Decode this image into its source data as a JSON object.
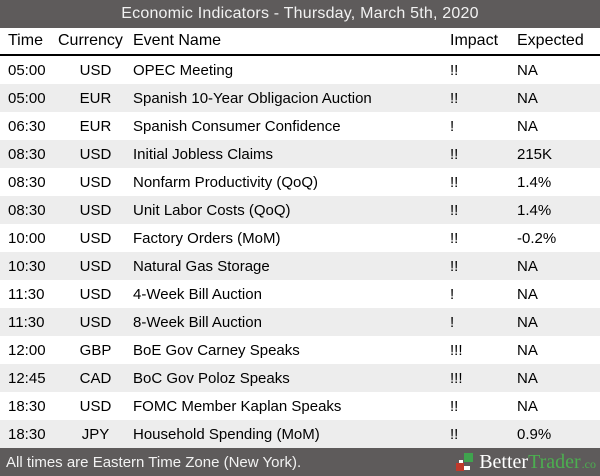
{
  "title": "Economic Indicators - Thursday, March 5th, 2020",
  "table": {
    "columns": [
      "Time",
      "Currency",
      "Event Name",
      "Impact",
      "Expected"
    ],
    "rows": [
      {
        "time": "05:00",
        "currency": "USD",
        "event": "OPEC Meeting",
        "impact": "!!",
        "expected": "NA"
      },
      {
        "time": "05:00",
        "currency": "EUR",
        "event": "Spanish 10-Year Obligacion Auction",
        "impact": "!!",
        "expected": "NA"
      },
      {
        "time": "06:30",
        "currency": "EUR",
        "event": "Spanish Consumer Confidence",
        "impact": "!",
        "expected": "NA"
      },
      {
        "time": "08:30",
        "currency": "USD",
        "event": "Initial Jobless Claims",
        "impact": "!!",
        "expected": "215K"
      },
      {
        "time": "08:30",
        "currency": "USD",
        "event": "Nonfarm Productivity (QoQ)",
        "impact": "!!",
        "expected": "1.4%"
      },
      {
        "time": "08:30",
        "currency": "USD",
        "event": "Unit Labor Costs (QoQ)",
        "impact": "!!",
        "expected": "1.4%"
      },
      {
        "time": "10:00",
        "currency": "USD",
        "event": "Factory Orders (MoM)",
        "impact": "!!",
        "expected": "-0.2%"
      },
      {
        "time": "10:30",
        "currency": "USD",
        "event": "Natural Gas Storage",
        "impact": "!!",
        "expected": "NA"
      },
      {
        "time": "11:30",
        "currency": "USD",
        "event": "4-Week Bill Auction",
        "impact": "!",
        "expected": "NA"
      },
      {
        "time": "11:30",
        "currency": "USD",
        "event": "8-Week Bill Auction",
        "impact": "!",
        "expected": "NA"
      },
      {
        "time": "12:00",
        "currency": "GBP",
        "event": "BoE Gov Carney Speaks",
        "impact": "!!!",
        "expected": "NA"
      },
      {
        "time": "12:45",
        "currency": "CAD",
        "event": "BoC Gov Poloz Speaks",
        "impact": "!!!",
        "expected": "NA"
      },
      {
        "time": "18:30",
        "currency": "USD",
        "event": "FOMC Member Kaplan Speaks",
        "impact": "!!",
        "expected": "NA"
      },
      {
        "time": "18:30",
        "currency": "JPY",
        "event": "Household Spending (MoM)",
        "impact": "!!",
        "expected": "0.9%"
      }
    ]
  },
  "footer": {
    "note": "All times are Eastern Time Zone (New York).",
    "brand": {
      "name_left": "Better",
      "name_right": "Trader",
      "tld": ".co"
    }
  },
  "colors": {
    "bar_background": "#5e5b5b",
    "row_stripe": "#ededed",
    "header_rule": "#000000",
    "brand_green": "#4caf50",
    "brand_red": "#c0392b",
    "bar_text": "#f2f2f2",
    "row_text": "#000000"
  }
}
